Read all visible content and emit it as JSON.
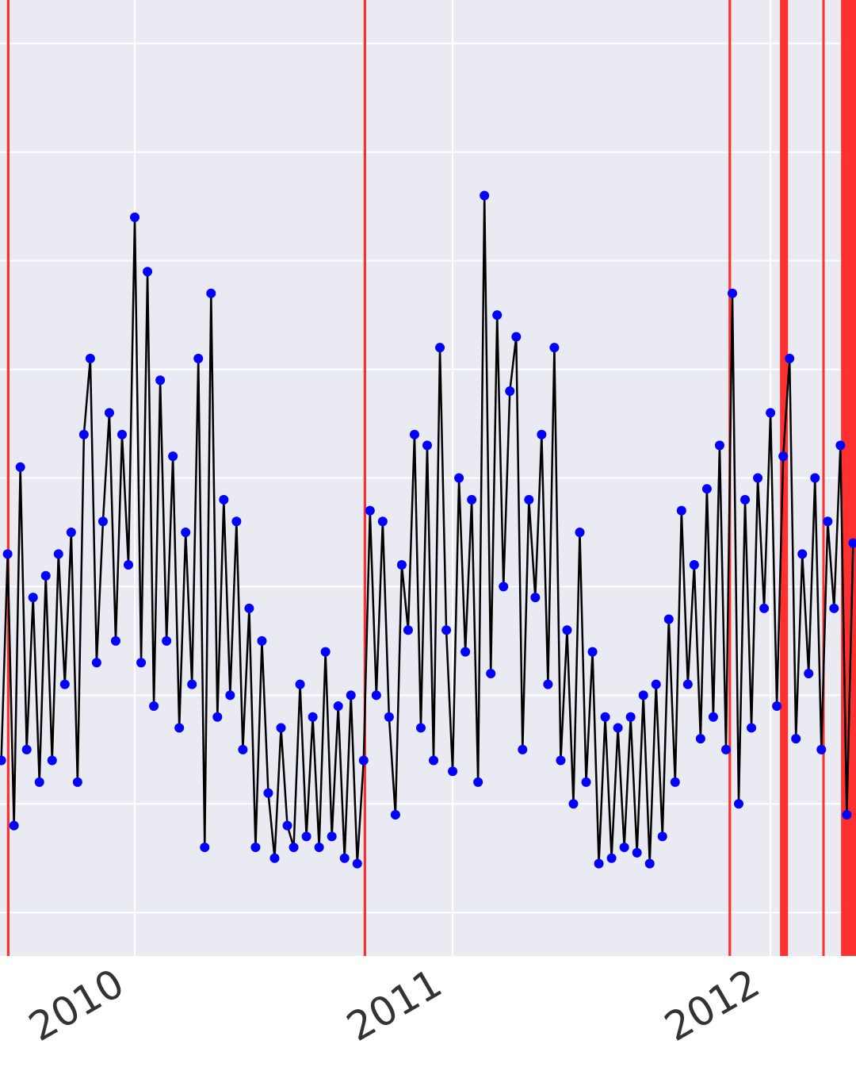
{
  "chart_data": {
    "type": "line",
    "x": [
      2009.58,
      2009.6,
      2009.62,
      2009.64,
      2009.66,
      2009.68,
      2009.7,
      2009.72,
      2009.74,
      2009.76,
      2009.78,
      2009.8,
      2009.82,
      2009.84,
      2009.86,
      2009.88,
      2009.9,
      2009.92,
      2009.94,
      2009.96,
      2009.98,
      2010,
      2010.02,
      2010.04,
      2010.06,
      2010.08,
      2010.1,
      2010.12,
      2010.14,
      2010.16,
      2010.18,
      2010.2,
      2010.22,
      2010.24,
      2010.26,
      2010.28,
      2010.3,
      2010.32,
      2010.34,
      2010.36,
      2010.38,
      2010.4,
      2010.42,
      2010.44,
      2010.46,
      2010.48,
      2010.5,
      2010.52,
      2010.54,
      2010.56,
      2010.58,
      2010.6,
      2010.62,
      2010.64,
      2010.66,
      2010.68,
      2010.7,
      2010.72,
      2010.74,
      2010.76,
      2010.78,
      2010.8,
      2010.82,
      2010.84,
      2010.86,
      2010.88,
      2010.9,
      2010.92,
      2010.94,
      2010.96,
      2010.98,
      2011,
      2011.02,
      2011.04,
      2011.06,
      2011.08,
      2011.1,
      2011.12,
      2011.14,
      2011.16,
      2011.18,
      2011.2,
      2011.22,
      2011.24,
      2011.26,
      2011.28,
      2011.3,
      2011.32,
      2011.34,
      2011.36,
      2011.38,
      2011.4,
      2011.42,
      2011.44,
      2011.46,
      2011.48,
      2011.5,
      2011.52,
      2011.54,
      2011.56,
      2011.58,
      2011.6,
      2011.62,
      2011.64,
      2011.66,
      2011.68,
      2011.7,
      2011.72,
      2011.74,
      2011.76,
      2011.78,
      2011.8,
      2011.82,
      2011.84,
      2011.86,
      2011.88,
      2011.9,
      2011.92,
      2011.94,
      2011.96,
      2011.98,
      2012,
      2012.02,
      2012.04,
      2012.06,
      2012.08,
      2012.1,
      2012.12,
      2012.14,
      2012.16,
      2012.18,
      2012.2,
      2012.22,
      2012.24,
      2012.26
    ],
    "series": [
      {
        "color": "#0000ff",
        "line_color": "#000000",
        "values": [
          2.4,
          4.3,
          1.8,
          5.1,
          2.5,
          3.9,
          2.2,
          4.1,
          2.4,
          4.3,
          3.1,
          4.5,
          2.2,
          5.4,
          6.1,
          3.3,
          4.6,
          5.6,
          3.5,
          5.4,
          4.2,
          7.4,
          3.3,
          6.9,
          2.9,
          5.9,
          3.5,
          5.2,
          2.7,
          4.5,
          3.1,
          6.1,
          1.6,
          6.7,
          2.8,
          4.8,
          3.0,
          4.6,
          2.5,
          3.8,
          1.6,
          3.5,
          2.1,
          1.5,
          2.7,
          1.8,
          1.6,
          3.1,
          1.7,
          2.8,
          1.6,
          3.4,
          1.7,
          2.9,
          1.5,
          3.0,
          1.45,
          2.4,
          4.7,
          3.0,
          4.6,
          2.8,
          1.9,
          4.2,
          3.6,
          5.4,
          2.7,
          5.3,
          2.4,
          6.2,
          3.6,
          2.3,
          5.0,
          3.4,
          4.8,
          2.2,
          7.6,
          3.2,
          6.5,
          4.0,
          5.8,
          6.3,
          2.5,
          4.8,
          3.9,
          5.4,
          3.1,
          6.2,
          2.4,
          3.6,
          2.0,
          4.5,
          2.2,
          3.4,
          1.45,
          2.8,
          1.5,
          2.7,
          1.6,
          2.8,
          1.55,
          3.0,
          1.45,
          3.1,
          1.7,
          3.7,
          2.2,
          4.7,
          3.1,
          4.2,
          2.6,
          4.9,
          2.8,
          5.3,
          2.5,
          6.7,
          2.0,
          4.8,
          2.7,
          5.0,
          3.8,
          5.6,
          2.9,
          5.2,
          6.1,
          2.6,
          4.3,
          3.2,
          5.0,
          2.5,
          4.6,
          3.8,
          5.3,
          1.9,
          4.4
        ]
      }
    ],
    "highlight_spans": [
      [
        2009.598,
        2009.606
      ],
      [
        2010.72,
        2010.728
      ],
      [
        2011.868,
        2011.876
      ],
      [
        2012.03,
        2012.055
      ],
      [
        2012.163,
        2012.17
      ],
      [
        2012.222,
        2012.269
      ]
    ],
    "highlight_color": "#ff3030",
    "xlim": [
      2009.576,
      2012.269
    ],
    "xticks": [
      2010,
      2011,
      2012
    ],
    "ylim": [
      0.6,
      9.4
    ],
    "yticks": [
      1,
      2,
      3,
      4,
      5,
      6,
      7,
      8,
      9
    ],
    "grid": true
  }
}
